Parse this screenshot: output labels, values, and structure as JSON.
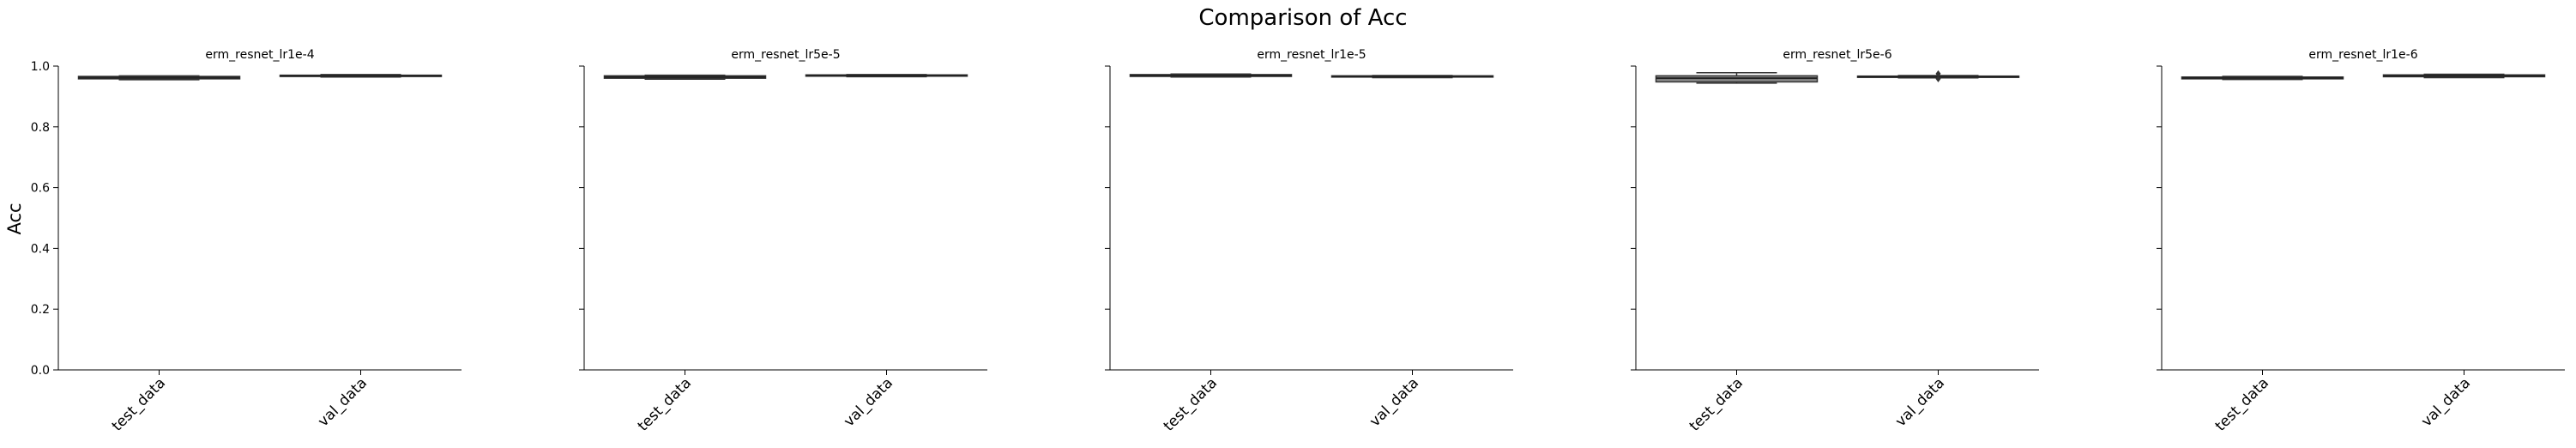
{
  "chart_data": {
    "type": "box",
    "suptitle": "Comparison of Acc",
    "ylabel": "Acc",
    "ylim": [
      0.0,
      1.0
    ],
    "yticks": [
      0.0,
      0.2,
      0.4,
      0.6,
      0.8,
      1.0
    ],
    "ytick_labels": [
      "0.0",
      "0.2",
      "0.4",
      "0.6",
      "0.8",
      "1.0"
    ],
    "categories": [
      "test_data",
      "val_data"
    ],
    "box_color": "#333333",
    "panels": [
      {
        "title": "erm_resnet_lr1e-4",
        "boxes": [
          {
            "category": "test_data",
            "q1": 0.958,
            "median": 0.962,
            "q3": 0.966,
            "whisker_low": 0.955,
            "whisker_high": 0.968,
            "outliers": []
          },
          {
            "category": "val_data",
            "q1": 0.966,
            "median": 0.968,
            "q3": 0.97,
            "whisker_low": 0.964,
            "whisker_high": 0.972,
            "outliers": []
          }
        ]
      },
      {
        "title": "erm_resnet_lr5e-5",
        "boxes": [
          {
            "category": "test_data",
            "q1": 0.96,
            "median": 0.964,
            "q3": 0.968,
            "whisker_low": 0.957,
            "whisker_high": 0.97,
            "outliers": []
          },
          {
            "category": "val_data",
            "q1": 0.967,
            "median": 0.969,
            "q3": 0.971,
            "whisker_low": 0.965,
            "whisker_high": 0.972,
            "outliers": []
          }
        ]
      },
      {
        "title": "erm_resnet_lr1e-5",
        "boxes": [
          {
            "category": "test_data",
            "q1": 0.966,
            "median": 0.969,
            "q3": 0.972,
            "whisker_low": 0.964,
            "whisker_high": 0.974,
            "outliers": []
          },
          {
            "category": "val_data",
            "q1": 0.964,
            "median": 0.966,
            "q3": 0.968,
            "whisker_low": 0.962,
            "whisker_high": 0.969,
            "outliers": []
          }
        ]
      },
      {
        "title": "erm_resnet_lr5e-6",
        "boxes": [
          {
            "category": "test_data",
            "q1": 0.948,
            "median": 0.96,
            "q3": 0.968,
            "whisker_low": 0.944,
            "whisker_high": 0.978,
            "outliers": []
          },
          {
            "category": "val_data",
            "q1": 0.963,
            "median": 0.965,
            "q3": 0.967,
            "whisker_low": 0.961,
            "whisker_high": 0.969,
            "outliers": [
              0.958,
              0.975
            ]
          }
        ]
      },
      {
        "title": "erm_resnet_lr1e-6",
        "boxes": [
          {
            "category": "test_data",
            "q1": 0.958,
            "median": 0.961,
            "q3": 0.964,
            "whisker_low": 0.956,
            "whisker_high": 0.966,
            "outliers": []
          },
          {
            "category": "val_data",
            "q1": 0.965,
            "median": 0.968,
            "q3": 0.971,
            "whisker_low": 0.962,
            "whisker_high": 0.973,
            "outliers": []
          }
        ]
      }
    ]
  }
}
